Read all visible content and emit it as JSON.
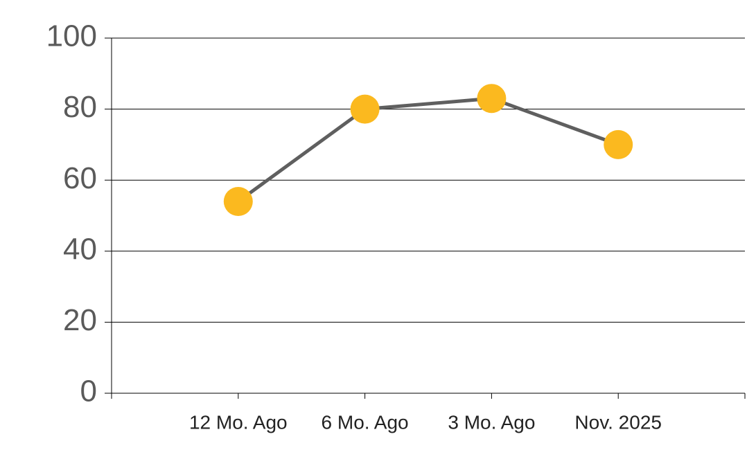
{
  "chart_data": {
    "type": "line",
    "categories": [
      null,
      "12 Mo. Ago",
      "6 Mo. Ago",
      "3 Mo. Ago",
      "Nov. 2025",
      null
    ],
    "series": [
      {
        "color": "#5f5f5f",
        "marker_color": "#fbb91f",
        "values": [
          null,
          54,
          80,
          83,
          70,
          null
        ]
      }
    ],
    "ylim": [
      0,
      100
    ],
    "yticks": [
      0,
      20,
      40,
      60,
      80,
      100
    ],
    "grid": true
  }
}
